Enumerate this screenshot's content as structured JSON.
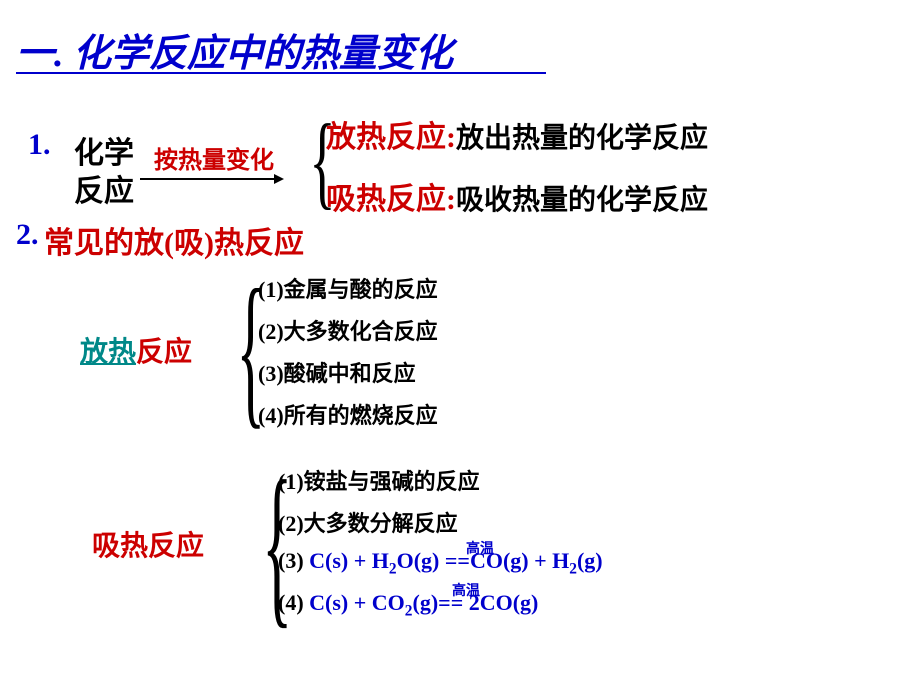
{
  "title": "一. 化学反应中的热量变化",
  "section1": {
    "num": "1.",
    "label_top": "化学",
    "label_bot": "反应",
    "arrow_label": "按热量变化",
    "row1_head": "放热反应:",
    "row1_tail": "放出热量的化学反应",
    "row2_head": "吸热反应:",
    "row2_tail": "吸收热量的化学反应"
  },
  "section2": {
    "num": "2.",
    "title": "常见的放(吸)热反应"
  },
  "fangre": {
    "label_teal": "放热",
    "label_red": "反应",
    "items": [
      "(1)金属与酸的反应",
      "(2)大多数化合反应",
      "(3)酸碱中和反应",
      "(4)所有的燃烧反应"
    ]
  },
  "xire": {
    "label": "吸热反应",
    "item1": "(1)铵盐与强碱的反应",
    "item2": "(2)大多数分解反应",
    "item3_pre": "(3) ",
    "item3_formula": "C(s) + H₂O(g) ==CO(g) + H₂(g)",
    "item4_pre": "(4) ",
    "item4_formula": "C(s) + CO₂(g)== 2CO(g)",
    "cond": "高温"
  },
  "colors": {
    "blue": "#0000cc",
    "red": "#cc0000",
    "teal": "#008888",
    "black": "#000000",
    "bg": "#ffffff"
  }
}
